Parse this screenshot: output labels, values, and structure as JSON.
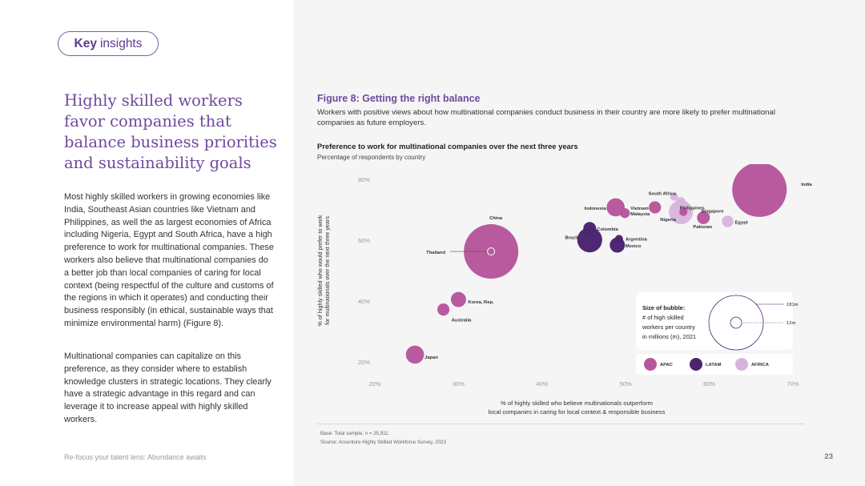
{
  "pill": {
    "bold": "Key",
    "rest": "insights"
  },
  "headline": "Highly skilled workers favor companies that balance business priorities and sustainability goals",
  "paragraphs": [
    "Most highly skilled workers in growing economies like India, Southeast Asian countries like Vietnam and Philippines, as well the as largest economies of Africa including Nigeria, Egypt and South Africa, have a high preference to work for multinational companies. These workers also believe that multinational companies do a better job than local companies of caring for local context (being respectful of the culture and customs of the regions in which it operates) and conducting their business responsibly (in ethical, sustainable ways that minimize environmental harm) (Figure 8).",
    "Multinational companies can capitalize on this preference, as they consider where to establish knowledge clusters in strategic locations. They clearly have a strategic advantage in this regard and can leverage it to increase appeal with highly skilled workers."
  ],
  "footer": {
    "left": "Re-focus your talent lens: Abundance awaits",
    "page": "23"
  },
  "figure": {
    "title": "Figure 8: Getting the right balance",
    "subtitle": "Workers with positive views about how multinational companies conduct business in their country are more likely to prefer multinational companies as future employers.",
    "chart_title": "Preference to work for multinational companies over the next three years",
    "chart_subtitle": "Percentage of respondents by country",
    "notes": [
      "Base: Total sample, n = 25,911.",
      "Source: Accenture Highly Skilled Workforce Survey, 2023"
    ]
  },
  "colors": {
    "APAC": "#b7579b",
    "LATAM": "#4b2470",
    "AFRICA": "#d7b3dd",
    "accent": "#6e4a9e"
  },
  "chart_data": {
    "type": "scatter",
    "xlabel": "% of highly skilled who believe multinationals outperform local companies in caring for local context & responsible business",
    "ylabel": "% of highly skilled who would prefer to work for multinationals over the next three years",
    "xlim": [
      20,
      70
    ],
    "ylim": [
      20,
      80
    ],
    "x_ticks": [
      "20%",
      "30%",
      "40%",
      "50%",
      "60%",
      "70%"
    ],
    "y_ticks": [
      "20%",
      "40%",
      "60%",
      "80%"
    ],
    "grid": false,
    "legend": {
      "position": "bottom-right",
      "entries": [
        "APAC",
        "LATAM",
        "AFRICA"
      ]
    },
    "bubble_size_note": {
      "title": "Size of bubble:",
      "lines": [
        "# of high skilled",
        "workers per country",
        "in millions (m), 2021"
      ],
      "big": "181m",
      "small": "12m"
    },
    "points": [
      {
        "label": "India",
        "x": 66.0,
        "y": 76.6,
        "size": 181,
        "region": "APAC"
      },
      {
        "label": "South Africa",
        "x": 55.8,
        "y": 74.3,
        "size": 4,
        "region": "AFRICA"
      },
      {
        "label": "Philippines",
        "x": 56.6,
        "y": 72.5,
        "size": 6,
        "region": "AFRICA"
      },
      {
        "label": "Vietnam",
        "x": 53.5,
        "y": 70.8,
        "size": 9,
        "region": "APAC"
      },
      {
        "label": "Indonesia",
        "x": 48.8,
        "y": 70.8,
        "size": 20,
        "region": "APAC"
      },
      {
        "label": "Singapore",
        "x": 56.9,
        "y": 69.3,
        "size": 4,
        "region": "APAC"
      },
      {
        "label": "Malaysia",
        "x": 49.9,
        "y": 68.9,
        "size": 6,
        "region": "APAC"
      },
      {
        "label": "Nigeria",
        "x": 56.6,
        "y": 69.2,
        "size": 35,
        "region": "AFRICA"
      },
      {
        "label": "Pakistan",
        "x": 59.3,
        "y": 67.4,
        "size": 10,
        "region": "APAC"
      },
      {
        "label": "Egypt",
        "x": 62.2,
        "y": 66.2,
        "size": 8,
        "region": "AFRICA"
      },
      {
        "label": "Colombia",
        "x": 45.7,
        "y": 63.9,
        "size": 10,
        "region": "LATAM"
      },
      {
        "label": "Brazil",
        "x": 45.7,
        "y": 60.1,
        "size": 38,
        "region": "LATAM"
      },
      {
        "label": "Argentina",
        "x": 49.2,
        "y": 60.4,
        "size": 4,
        "region": "LATAM"
      },
      {
        "label": "Mexico",
        "x": 49.0,
        "y": 58.4,
        "size": 14,
        "region": "LATAM"
      },
      {
        "label": "China",
        "x": 33.9,
        "y": 56.3,
        "size": 181,
        "region": "APAC"
      },
      {
        "label": "Thailand",
        "x": 33.9,
        "y": 56.3,
        "size": 2,
        "region": "APAC"
      },
      {
        "label": "Korea, Rep.",
        "x": 30.0,
        "y": 40.5,
        "size": 14,
        "region": "APAC"
      },
      {
        "label": "Australia",
        "x": 28.2,
        "y": 37.2,
        "size": 9,
        "region": "APAC"
      },
      {
        "label": "Japan",
        "x": 24.8,
        "y": 22.4,
        "size": 20,
        "region": "APAC"
      }
    ]
  }
}
